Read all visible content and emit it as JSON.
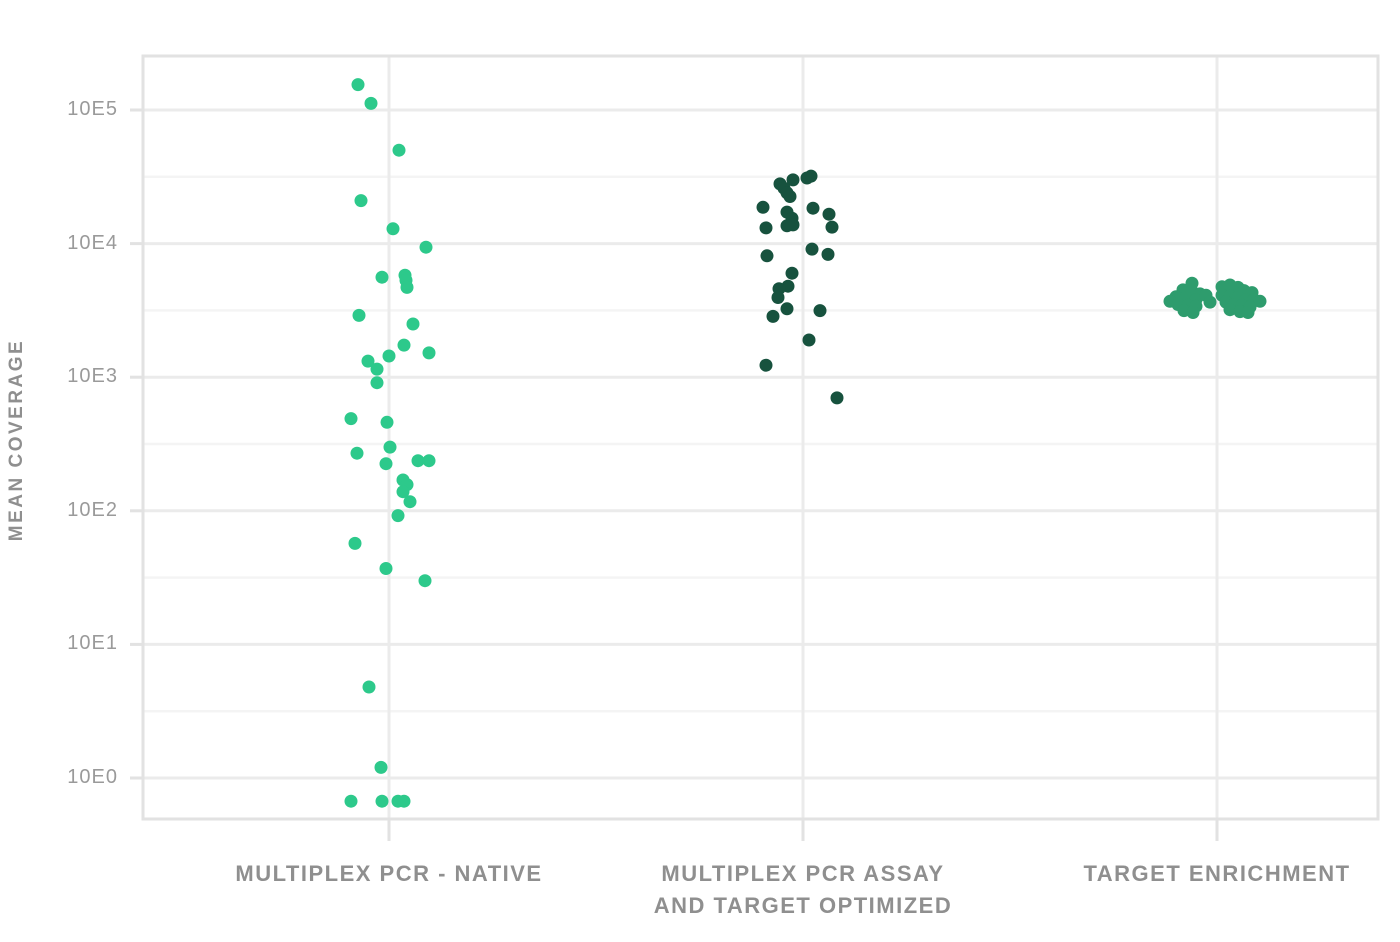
{
  "chart_data": {
    "type": "scatter",
    "variant": "jittered-strip-plot",
    "title": "",
    "xlabel": "",
    "ylabel": "MEAN COVERAGE",
    "y_scale": "log10",
    "ylim": [
      0.5,
      250000
    ],
    "grid": "major-and-minor-horizontal, one vertical line per category",
    "legend": "none",
    "y_ticks": [
      {
        "label": "10E5",
        "exponent": 5
      },
      {
        "label": "10E4",
        "exponent": 4
      },
      {
        "label": "10E3",
        "exponent": 3
      },
      {
        "label": "10E2",
        "exponent": 2
      },
      {
        "label": "10E1",
        "exponent": 1
      },
      {
        "label": "10E0",
        "exponent": 0
      }
    ],
    "y_minor_exponents": [
      4.5,
      3.5,
      2.5,
      1.5,
      0.5
    ],
    "colors": {
      "plot_border": "#e2e2e2",
      "major_grid": "#ebebeb",
      "minor_grid": "#f4f4f4",
      "tick_mark": "#e2e2e2",
      "axis_tick_text": "#9a9a9a",
      "axis_label_text": "#8f8f8f",
      "series_native": "#2dc98b",
      "series_assay_optimized": "#17523e",
      "series_target_enrichment": "#2e9c6d"
    },
    "categories": [
      {
        "id": "multiplex-pcr-native",
        "label_lines": [
          "MULTIPLEX PCR - NATIVE",
          ""
        ]
      },
      {
        "id": "multiplex-pcr-assay-and-target-optimized",
        "label_lines": [
          "MULTIPLEX PCR ASSAY",
          "AND TARGET OPTIMIZED"
        ]
      },
      {
        "id": "target-enrichment",
        "label_lines": [
          "TARGET ENRICHMENT",
          ""
        ]
      }
    ],
    "series": [
      {
        "name": "MULTIPLEX PCR - NATIVE",
        "color": "#2dc98b",
        "points_format": "[x_jitter_px_from_category_center, mean_coverage_value]",
        "points": [
          [
            -31,
            155000
          ],
          [
            -18,
            112000
          ],
          [
            10,
            50000
          ],
          [
            -28,
            21000
          ],
          [
            4,
            12900
          ],
          [
            37,
            9400
          ],
          [
            16,
            5800
          ],
          [
            -7,
            5600
          ],
          [
            17,
            5300
          ],
          [
            18,
            4700
          ],
          [
            -30,
            2900
          ],
          [
            24,
            2500
          ],
          [
            15,
            1740
          ],
          [
            40,
            1520
          ],
          [
            0,
            1440
          ],
          [
            -21,
            1320
          ],
          [
            -12,
            1150
          ],
          [
            -12,
            910
          ],
          [
            -38,
            490
          ],
          [
            -2,
            460
          ],
          [
            1,
            300
          ],
          [
            -32,
            270
          ],
          [
            29,
            237
          ],
          [
            40,
            237
          ],
          [
            -3,
            225
          ],
          [
            14,
            170
          ],
          [
            18,
            157
          ],
          [
            14,
            139
          ],
          [
            21,
            117
          ],
          [
            9,
            92
          ],
          [
            -34,
            57
          ],
          [
            -3,
            37
          ],
          [
            36,
            30
          ],
          [
            -20,
            4.8
          ],
          [
            -8,
            1.2
          ],
          [
            -38,
            0.67
          ],
          [
            -7,
            0.67
          ],
          [
            9,
            0.67
          ],
          [
            15,
            0.67
          ]
        ]
      },
      {
        "name": "MULTIPLEX PCR ASSAY AND TARGET OPTIMIZED",
        "color": "#17523e",
        "points_format": "[x_jitter_px_from_category_center, mean_coverage_value]",
        "points": [
          [
            8,
            32000
          ],
          [
            4,
            31000
          ],
          [
            -10,
            30000
          ],
          [
            -23,
            28000
          ],
          [
            -19,
            26000
          ],
          [
            -16,
            24000
          ],
          [
            -13,
            22500
          ],
          [
            -40,
            18700
          ],
          [
            10,
            18400
          ],
          [
            -16,
            17200
          ],
          [
            26,
            16600
          ],
          [
            -11,
            15500
          ],
          [
            -10,
            13800
          ],
          [
            -16,
            13600
          ],
          [
            29,
            13300
          ],
          [
            -37,
            13100
          ],
          [
            9,
            9100
          ],
          [
            25,
            8300
          ],
          [
            -36,
            8100
          ],
          [
            -11,
            6000
          ],
          [
            -15,
            4800
          ],
          [
            -24,
            4600
          ],
          [
            -25,
            3950
          ],
          [
            -16,
            3250
          ],
          [
            17,
            3150
          ],
          [
            -30,
            2850
          ],
          [
            6,
            1900
          ],
          [
            -37,
            1230
          ],
          [
            34,
            700
          ]
        ]
      },
      {
        "name": "TARGET ENRICHMENT",
        "color": "#2e9c6d",
        "points_format": "[x_jitter_px_from_category_center, mean_coverage_value]",
        "points": [
          [
            -25,
            5050
          ],
          [
            -34,
            4500
          ],
          [
            -25,
            4400
          ],
          [
            -17,
            4200
          ],
          [
            -41,
            4000
          ],
          [
            -31,
            3950
          ],
          [
            -21,
            3800
          ],
          [
            -47,
            3700
          ],
          [
            -39,
            3500
          ],
          [
            -29,
            3450
          ],
          [
            -21,
            3400
          ],
          [
            -33,
            3150
          ],
          [
            -24,
            3050
          ],
          [
            -11,
            4100
          ],
          [
            -7,
            3650
          ],
          [
            5,
            4750
          ],
          [
            13,
            4900
          ],
          [
            21,
            4700
          ],
          [
            27,
            4450
          ],
          [
            35,
            4300
          ],
          [
            5,
            4100
          ],
          [
            13,
            4050
          ],
          [
            21,
            3950
          ],
          [
            29,
            3800
          ],
          [
            37,
            3800
          ],
          [
            43,
            3700
          ],
          [
            9,
            3650
          ],
          [
            17,
            3500
          ],
          [
            25,
            3450
          ],
          [
            33,
            3350
          ],
          [
            13,
            3200
          ],
          [
            23,
            3100
          ],
          [
            31,
            3050
          ]
        ]
      }
    ]
  }
}
